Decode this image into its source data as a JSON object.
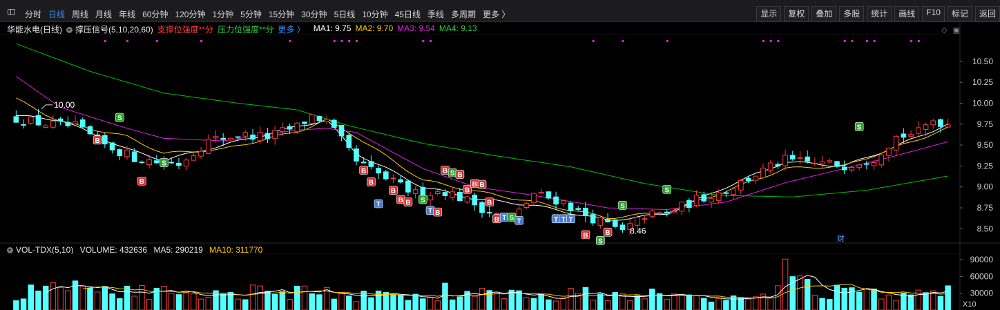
{
  "toolbar": {
    "tabs": [
      "分时",
      "日线",
      "周线",
      "月线",
      "年线",
      "60分钟",
      "120分钟",
      "1分钟",
      "5分钟",
      "15分钟",
      "30分钟",
      "5日线",
      "10分钟",
      "45日线",
      "季线",
      "多周期",
      "更多 〉"
    ],
    "active_tab": "日线",
    "right_buttons": [
      "显示",
      "复权",
      "叠加",
      "多股",
      "统计",
      "画线",
      "F10",
      "标记",
      "返回"
    ]
  },
  "price_legend": {
    "stock": "华能水电(日线)",
    "indicator": "撑压信号(5,10,20,60)",
    "support": "支撑位强度**分",
    "pressure": "压力位强度**分",
    "more": "更多 〉",
    "ma1": "MA1: 9.75",
    "ma2": "MA2: 9.70",
    "ma3": "MA3: 9.54",
    "ma4": "MA4: 9.13"
  },
  "volume_legend": {
    "name": "VOL-TDX(5,10)",
    "volume": "VOLUME: 432636",
    "ma5": "MA5: 290219",
    "ma10": "MA10: 311770"
  },
  "colors": {
    "up": "#ff3b3b",
    "down": "#54ffff",
    "ma1": "#ffffff",
    "ma2": "#ffcc00",
    "ma3": "#e020e0",
    "ma4": "#00c000",
    "active": "#3b8cff"
  },
  "chart_data": {
    "type": "candlestick",
    "price_axis": {
      "ticks": [
        "10.50",
        "10.25",
        "10.00",
        "9.75",
        "9.50",
        "9.25",
        "9.00",
        "8.75",
        "8.50"
      ],
      "ylim": [
        8.33,
        10.82
      ]
    },
    "volume_axis": {
      "ticks": [
        "90000",
        "60000",
        "30000"
      ],
      "ylim": [
        0,
        100000
      ],
      "unit_label": "X10"
    },
    "annotations": {
      "high_label": "10.00",
      "low_label": "8.46",
      "finance_marker": "财"
    },
    "series_ma": [
      {
        "name": "MA1",
        "anchors": [
          [
            0,
            9.85
          ],
          [
            6,
            9.8
          ],
          [
            15,
            9.45
          ],
          [
            20,
            9.32
          ],
          [
            28,
            9.5
          ],
          [
            38,
            9.72
          ],
          [
            42,
            9.8
          ],
          [
            46,
            9.4
          ],
          [
            55,
            9.0
          ],
          [
            62,
            8.86
          ],
          [
            70,
            8.78
          ],
          [
            80,
            8.6
          ],
          [
            88,
            8.68
          ],
          [
            96,
            9.0
          ],
          [
            104,
            9.3
          ],
          [
            112,
            9.25
          ],
          [
            118,
            9.45
          ],
          [
            126,
            9.75
          ]
        ]
      },
      {
        "name": "MA2",
        "anchors": [
          [
            0,
            10.05
          ],
          [
            6,
            9.78
          ],
          [
            15,
            9.6
          ],
          [
            20,
            9.4
          ],
          [
            28,
            9.45
          ],
          [
            38,
            9.66
          ],
          [
            42,
            9.8
          ],
          [
            46,
            9.6
          ],
          [
            55,
            9.08
          ],
          [
            62,
            8.95
          ],
          [
            70,
            8.82
          ],
          [
            80,
            8.63
          ],
          [
            88,
            8.7
          ],
          [
            96,
            8.95
          ],
          [
            104,
            9.22
          ],
          [
            112,
            9.25
          ],
          [
            118,
            9.44
          ],
          [
            126,
            9.7
          ]
        ]
      },
      {
        "name": "MA3",
        "anchors": [
          [
            0,
            10.32
          ],
          [
            6,
            9.95
          ],
          [
            15,
            9.7
          ],
          [
            20,
            9.58
          ],
          [
            28,
            9.55
          ],
          [
            38,
            9.68
          ],
          [
            42,
            9.7
          ],
          [
            46,
            9.65
          ],
          [
            55,
            9.22
          ],
          [
            62,
            9.0
          ],
          [
            70,
            8.9
          ],
          [
            80,
            8.75
          ],
          [
            88,
            8.73
          ],
          [
            96,
            8.82
          ],
          [
            104,
            9.05
          ],
          [
            112,
            9.22
          ],
          [
            118,
            9.35
          ],
          [
            126,
            9.54
          ]
        ]
      },
      {
        "name": "MA4",
        "anchors": [
          [
            0,
            10.71
          ],
          [
            10,
            10.38
          ],
          [
            20,
            10.12
          ],
          [
            30,
            10.0
          ],
          [
            38,
            9.92
          ],
          [
            45,
            9.73
          ],
          [
            55,
            9.52
          ],
          [
            65,
            9.37
          ],
          [
            75,
            9.24
          ],
          [
            85,
            9.04
          ],
          [
            95,
            8.9
          ],
          [
            105,
            8.88
          ],
          [
            115,
            8.96
          ],
          [
            126,
            9.13
          ]
        ]
      }
    ],
    "close_anchors": [
      [
        0,
        9.82
      ],
      [
        4,
        9.75
      ],
      [
        8,
        9.72
      ],
      [
        12,
        9.5
      ],
      [
        16,
        9.35
      ],
      [
        19,
        9.3
      ],
      [
        22,
        9.28
      ],
      [
        26,
        9.55
      ],
      [
        30,
        9.62
      ],
      [
        34,
        9.6
      ],
      [
        38,
        9.72
      ],
      [
        40,
        9.85
      ],
      [
        42,
        9.78
      ],
      [
        44,
        9.55
      ],
      [
        46,
        9.3
      ],
      [
        50,
        9.1
      ],
      [
        54,
        8.92
      ],
      [
        58,
        8.95
      ],
      [
        62,
        8.8
      ],
      [
        64,
        8.7
      ],
      [
        67,
        8.6
      ],
      [
        70,
        8.92
      ],
      [
        74,
        8.82
      ],
      [
        76,
        8.7
      ],
      [
        80,
        8.55
      ],
      [
        82,
        8.46
      ],
      [
        85,
        8.66
      ],
      [
        88,
        8.68
      ],
      [
        92,
        8.85
      ],
      [
        96,
        8.96
      ],
      [
        100,
        9.15
      ],
      [
        104,
        9.32
      ],
      [
        108,
        9.28
      ],
      [
        112,
        9.26
      ],
      [
        116,
        9.35
      ],
      [
        119,
        9.6
      ],
      [
        122,
        9.65
      ],
      [
        124,
        9.8
      ],
      [
        126,
        9.75
      ]
    ],
    "volume_anchors": [
      [
        0,
        30000
      ],
      [
        6,
        35000
      ],
      [
        10,
        28000
      ],
      [
        15,
        33000
      ],
      [
        25,
        31000
      ],
      [
        35,
        34000
      ],
      [
        45,
        27000
      ],
      [
        55,
        24000
      ],
      [
        62,
        29000
      ],
      [
        70,
        27000
      ],
      [
        80,
        30000
      ],
      [
        88,
        26000
      ],
      [
        95,
        24000
      ],
      [
        100,
        27000
      ],
      [
        103,
        46000
      ],
      [
        106,
        52000
      ],
      [
        110,
        32000
      ],
      [
        115,
        27000
      ],
      [
        120,
        25000
      ],
      [
        126,
        29000
      ]
    ],
    "volume_spikes": [
      [
        104,
        91000
      ],
      [
        106,
        61000
      ],
      [
        107,
        55000
      ],
      [
        8,
        52000
      ],
      [
        58,
        48000
      ],
      [
        126,
        43263
      ]
    ],
    "signals": [
      {
        "t": "S",
        "i": 14,
        "p": 9.83
      },
      {
        "t": "B",
        "i": 11,
        "p": 9.56
      },
      {
        "t": "B",
        "i": 17,
        "p": 9.07
      },
      {
        "t": "S",
        "i": 20,
        "p": 9.29
      },
      {
        "t": "B",
        "i": 47,
        "p": 9.2
      },
      {
        "t": "B",
        "i": 48,
        "p": 9.06
      },
      {
        "t": "T",
        "i": 49,
        "p": 8.8
      },
      {
        "t": "B",
        "i": 51,
        "p": 8.96
      },
      {
        "t": "B",
        "i": 52,
        "p": 8.85
      },
      {
        "t": "B",
        "i": 53,
        "p": 8.82
      },
      {
        "t": "S",
        "i": 55,
        "p": 8.85
      },
      {
        "t": "T",
        "i": 56,
        "p": 8.72
      },
      {
        "t": "B",
        "i": 57,
        "p": 8.7
      },
      {
        "t": "B",
        "i": 58,
        "p": 9.2
      },
      {
        "t": "S",
        "i": 59,
        "p": 9.17
      },
      {
        "t": "B",
        "i": 60,
        "p": 9.15
      },
      {
        "t": "B",
        "i": 61,
        "p": 8.97
      },
      {
        "t": "B",
        "i": 62,
        "p": 9.04
      },
      {
        "t": "B",
        "i": 63,
        "p": 9.03
      },
      {
        "t": "B",
        "i": 64,
        "p": 8.82
      },
      {
        "t": "B",
        "i": 65,
        "p": 8.62
      },
      {
        "t": "T",
        "i": 66,
        "p": 8.64
      },
      {
        "t": "S",
        "i": 67,
        "p": 8.64
      },
      {
        "t": "T",
        "i": 68,
        "p": 8.6
      },
      {
        "t": "T",
        "i": 73,
        "p": 8.62
      },
      {
        "t": "T",
        "i": 74,
        "p": 8.62
      },
      {
        "t": "T",
        "i": 75,
        "p": 8.62
      },
      {
        "t": "B",
        "i": 77,
        "p": 8.43
      },
      {
        "t": "S",
        "i": 79,
        "p": 8.36
      },
      {
        "t": "B",
        "i": 80,
        "p": 8.46
      },
      {
        "t": "S",
        "i": 82,
        "p": 8.78
      },
      {
        "t": "S",
        "i": 88,
        "p": 8.97
      },
      {
        "t": "S",
        "i": 114,
        "p": 9.72
      }
    ],
    "dots": [
      12,
      15,
      19,
      25,
      37,
      43,
      44,
      45,
      46,
      55,
      56,
      78,
      82,
      88,
      101,
      102,
      103,
      112,
      113,
      115,
      116,
      121,
      122
    ]
  }
}
